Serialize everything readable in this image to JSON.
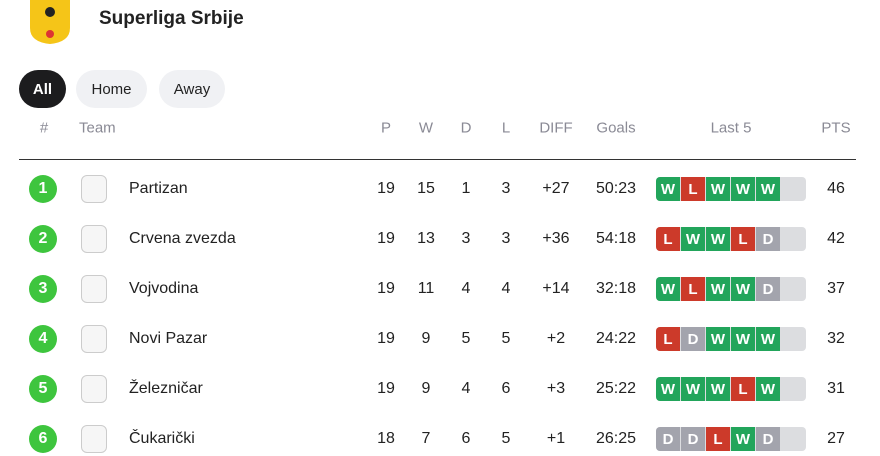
{
  "header": {
    "title": "Superliga Srbije"
  },
  "tabs": [
    "All",
    "Home",
    "Away"
  ],
  "table": {
    "columns": [
      "#",
      "Team",
      "P",
      "W",
      "D",
      "L",
      "DIFF",
      "Goals",
      "Last 5",
      "PTS"
    ],
    "rows": [
      {
        "rank": 1,
        "team": "Partizan",
        "p": 19,
        "w": 15,
        "d": 1,
        "l": 3,
        "diff": "+27",
        "goals": "50:23",
        "last5": [
          "W",
          "L",
          "W",
          "W",
          "W"
        ],
        "pts": 46
      },
      {
        "rank": 2,
        "team": "Crvena zvezda",
        "p": 19,
        "w": 13,
        "d": 3,
        "l": 3,
        "diff": "+36",
        "goals": "54:18",
        "last5": [
          "L",
          "W",
          "W",
          "L",
          "D"
        ],
        "pts": 42
      },
      {
        "rank": 3,
        "team": "Vojvodina",
        "p": 19,
        "w": 11,
        "d": 4,
        "l": 4,
        "diff": "+14",
        "goals": "32:18",
        "last5": [
          "W",
          "L",
          "W",
          "W",
          "D"
        ],
        "pts": 37
      },
      {
        "rank": 4,
        "team": "Novi Pazar",
        "p": 19,
        "w": 9,
        "d": 5,
        "l": 5,
        "diff": "+2",
        "goals": "24:22",
        "last5": [
          "L",
          "D",
          "W",
          "W",
          "W"
        ],
        "pts": 32
      },
      {
        "rank": 5,
        "team": "Železničar",
        "p": 19,
        "w": 9,
        "d": 4,
        "l": 6,
        "diff": "+3",
        "goals": "25:22",
        "last5": [
          "W",
          "W",
          "W",
          "L",
          "W"
        ],
        "pts": 31
      },
      {
        "rank": 6,
        "team": "Čukarički",
        "p": 18,
        "w": 7,
        "d": 6,
        "l": 5,
        "diff": "+1",
        "goals": "26:25",
        "last5": [
          "D",
          "D",
          "L",
          "W",
          "D"
        ],
        "pts": 27
      }
    ]
  }
}
